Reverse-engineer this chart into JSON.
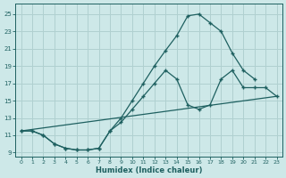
{
  "xlabel": "Humidex (Indice chaleur)",
  "bg_color": "#cde8e8",
  "grid_color": "#b0d0d0",
  "line_color": "#1e6060",
  "xlim": [
    -0.5,
    23.5
  ],
  "ylim": [
    8.5,
    26.2
  ],
  "xticks": [
    0,
    1,
    2,
    3,
    4,
    5,
    6,
    7,
    8,
    9,
    10,
    11,
    12,
    13,
    14,
    15,
    16,
    17,
    18,
    19,
    20,
    21,
    22,
    23
  ],
  "yticks": [
    9,
    11,
    13,
    15,
    17,
    19,
    21,
    23,
    25
  ],
  "curve1_x": [
    0,
    1,
    2,
    3,
    4,
    5,
    6,
    7,
    8,
    9,
    10,
    11,
    12,
    13,
    14,
    15,
    16,
    17,
    18,
    19,
    20,
    21
  ],
  "curve1_y": [
    11.5,
    11.5,
    11.0,
    10.0,
    9.5,
    9.3,
    9.3,
    9.5,
    11.5,
    13.0,
    15.0,
    17.0,
    19.0,
    20.8,
    22.5,
    24.8,
    25.0,
    24.0,
    23.0,
    20.5,
    18.5,
    17.5
  ],
  "curve2_x": [
    0,
    1,
    2,
    3,
    4,
    5,
    6,
    7,
    8,
    9,
    10,
    11,
    12,
    13,
    14,
    15,
    16,
    17,
    18,
    19,
    20,
    21,
    22,
    23
  ],
  "curve2_y": [
    11.5,
    11.5,
    11.0,
    10.0,
    9.5,
    9.3,
    9.3,
    9.5,
    11.5,
    12.5,
    14.0,
    15.5,
    17.0,
    18.5,
    17.5,
    14.5,
    14.0,
    14.5,
    17.5,
    18.5,
    16.5,
    16.5,
    16.5,
    15.5
  ],
  "line3_x": [
    0,
    23
  ],
  "line3_y": [
    11.5,
    15.5
  ]
}
